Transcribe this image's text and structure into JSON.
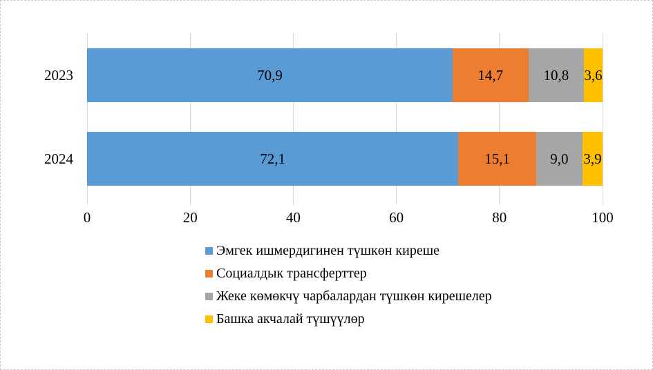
{
  "chart_data": {
    "type": "bar",
    "orientation": "horizontal",
    "stacked": true,
    "title": "",
    "categories": [
      "2023",
      "2024"
    ],
    "series": [
      {
        "name": "Эмгек ишмердигинен түшкөн киреше",
        "color": "#5B9BD5",
        "values": [
          70.9,
          72.1
        ],
        "labels": [
          "70,9",
          "72,1"
        ]
      },
      {
        "name": "Социалдык трансферттер",
        "color": "#ED7D31",
        "values": [
          14.7,
          15.1
        ],
        "labels": [
          "14,7",
          "15,1"
        ]
      },
      {
        "name": "Жеке көмөкчү чарбалардан түшкөн кирешелер",
        "color": "#A6A6A6",
        "values": [
          10.8,
          9.0
        ],
        "labels": [
          "10,8",
          "9,0"
        ]
      },
      {
        "name": "Башка акчалай түшүүлөр",
        "color": "#FFC000",
        "values": [
          3.6,
          3.9
        ],
        "labels": [
          "3,6",
          "3,9"
        ]
      }
    ],
    "xlim": [
      0,
      100
    ],
    "x_ticks": [
      0,
      20,
      40,
      60,
      80,
      100
    ],
    "x_tick_labels": [
      "0",
      "20",
      "40",
      "60",
      "80",
      "100"
    ],
    "grid": true,
    "gridline_color": "#D9D9D9",
    "label_color": "#000000",
    "legend_position": "bottom-left"
  }
}
